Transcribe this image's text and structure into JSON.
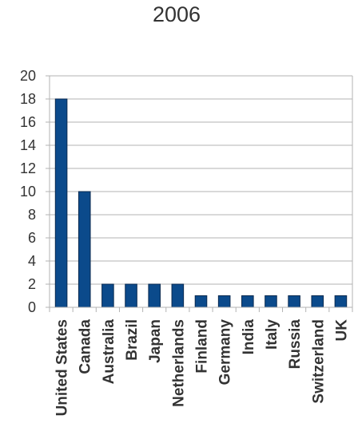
{
  "chart_data": {
    "type": "bar",
    "title": "2006",
    "xlabel": "",
    "ylabel": "",
    "categories": [
      "United States",
      "Canada",
      "Australia",
      "Brazil",
      "Japan",
      "Netherlands",
      "Finland",
      "Germany",
      "India",
      "Italy",
      "Russia",
      "Switzerland",
      "UK"
    ],
    "values": [
      18,
      10,
      2,
      2,
      2,
      2,
      1,
      1,
      1,
      1,
      1,
      1,
      1
    ],
    "ylim": [
      0,
      20
    ],
    "yticks": [
      "0",
      "2",
      "4",
      "6",
      "8",
      "10",
      "12",
      "14",
      "16",
      "18",
      "20"
    ],
    "grid": true,
    "legend": "none",
    "bar_color": "#0b4a8b",
    "grid_color": "#b3b3b3"
  }
}
